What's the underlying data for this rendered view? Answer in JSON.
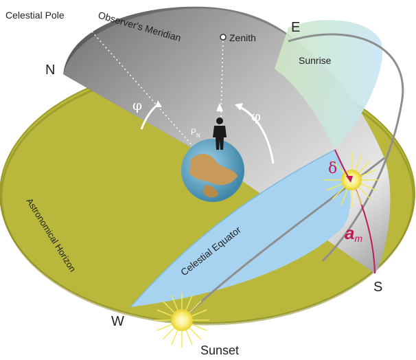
{
  "labels": {
    "celestial_pole": "Celestial Pole",
    "observers_meridian": "Observer's Meridian",
    "zenith": "Zenith",
    "north": "N",
    "east": "E",
    "south": "S",
    "west": "W",
    "sunrise": "Sunrise",
    "sunset": "Sunset",
    "phi_left": "φ",
    "phi_right": "φ",
    "pn_main": "P",
    "pn_sub": "N",
    "delta": "δ",
    "am_main": "a",
    "am_sub": "m",
    "astronomical_horizon": "Astronomical Horizon",
    "celestial_equator": "Celestial Equator"
  },
  "colors": {
    "horizon_fill": "#b9b83d",
    "horizon_edge": "#8a8a22",
    "meridian_gray": "#9a9a9a",
    "equator_blue": "#a8d3f0",
    "sun_yellow": "#f2e85a",
    "accent_magenta": "#c2185b"
  }
}
